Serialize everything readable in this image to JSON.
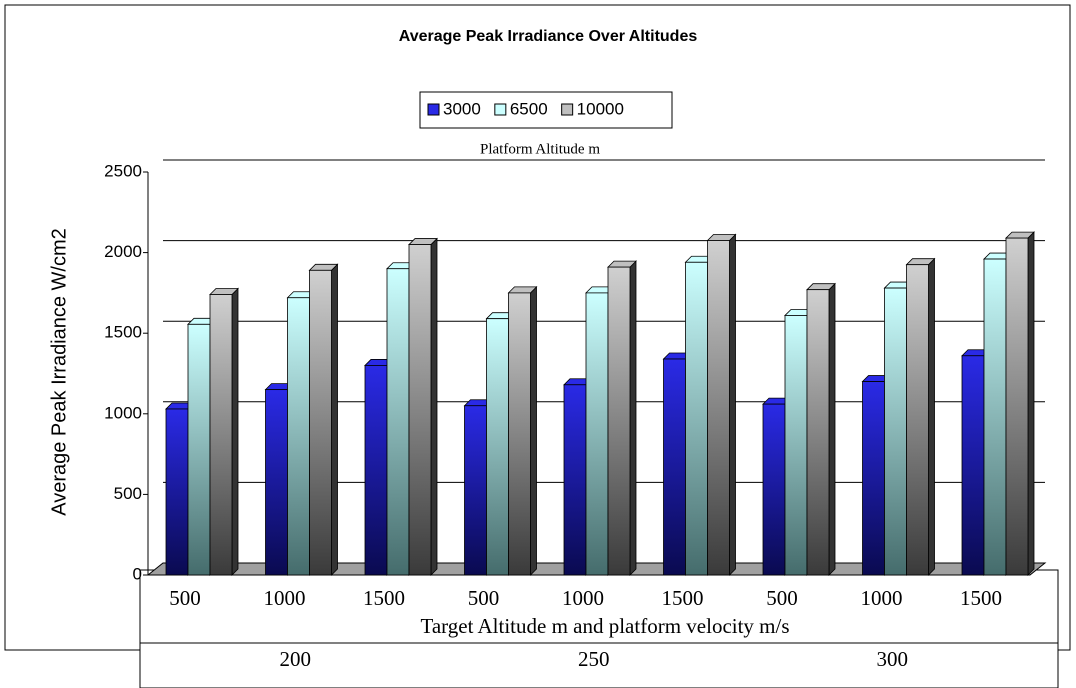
{
  "chart_data": {
    "type": "bar",
    "title": "Average Peak Irradiance Over Altitudes",
    "legend_title": "Platform Altitude m",
    "ylabel": "Average Peak Irradiance W/cm2",
    "xlabel": "Target Altitude m and platform velocity m/s",
    "categories": [
      "500",
      "1000",
      "1500",
      "500",
      "1000",
      "1500",
      "500",
      "1000",
      "1500"
    ],
    "groups": [
      "200",
      "250",
      "300"
    ],
    "series": [
      {
        "name": "3000",
        "color": "#2a2ae6",
        "values": [
          1030,
          1150,
          1300,
          1050,
          1180,
          1340,
          1060,
          1200,
          1360
        ]
      },
      {
        "name": "6500",
        "color": "#ccffff",
        "values": [
          1555,
          1720,
          1900,
          1590,
          1750,
          1940,
          1610,
          1780,
          1960
        ]
      },
      {
        "name": "10000",
        "color": "#c0c0c0",
        "values": [
          1740,
          1890,
          2050,
          1750,
          1910,
          2075,
          1770,
          1925,
          2090
        ]
      }
    ],
    "ylim": [
      0,
      2500
    ],
    "yticks": [
      0,
      500,
      1000,
      1500,
      2000,
      2500
    ],
    "grid": true,
    "legend": "top"
  }
}
